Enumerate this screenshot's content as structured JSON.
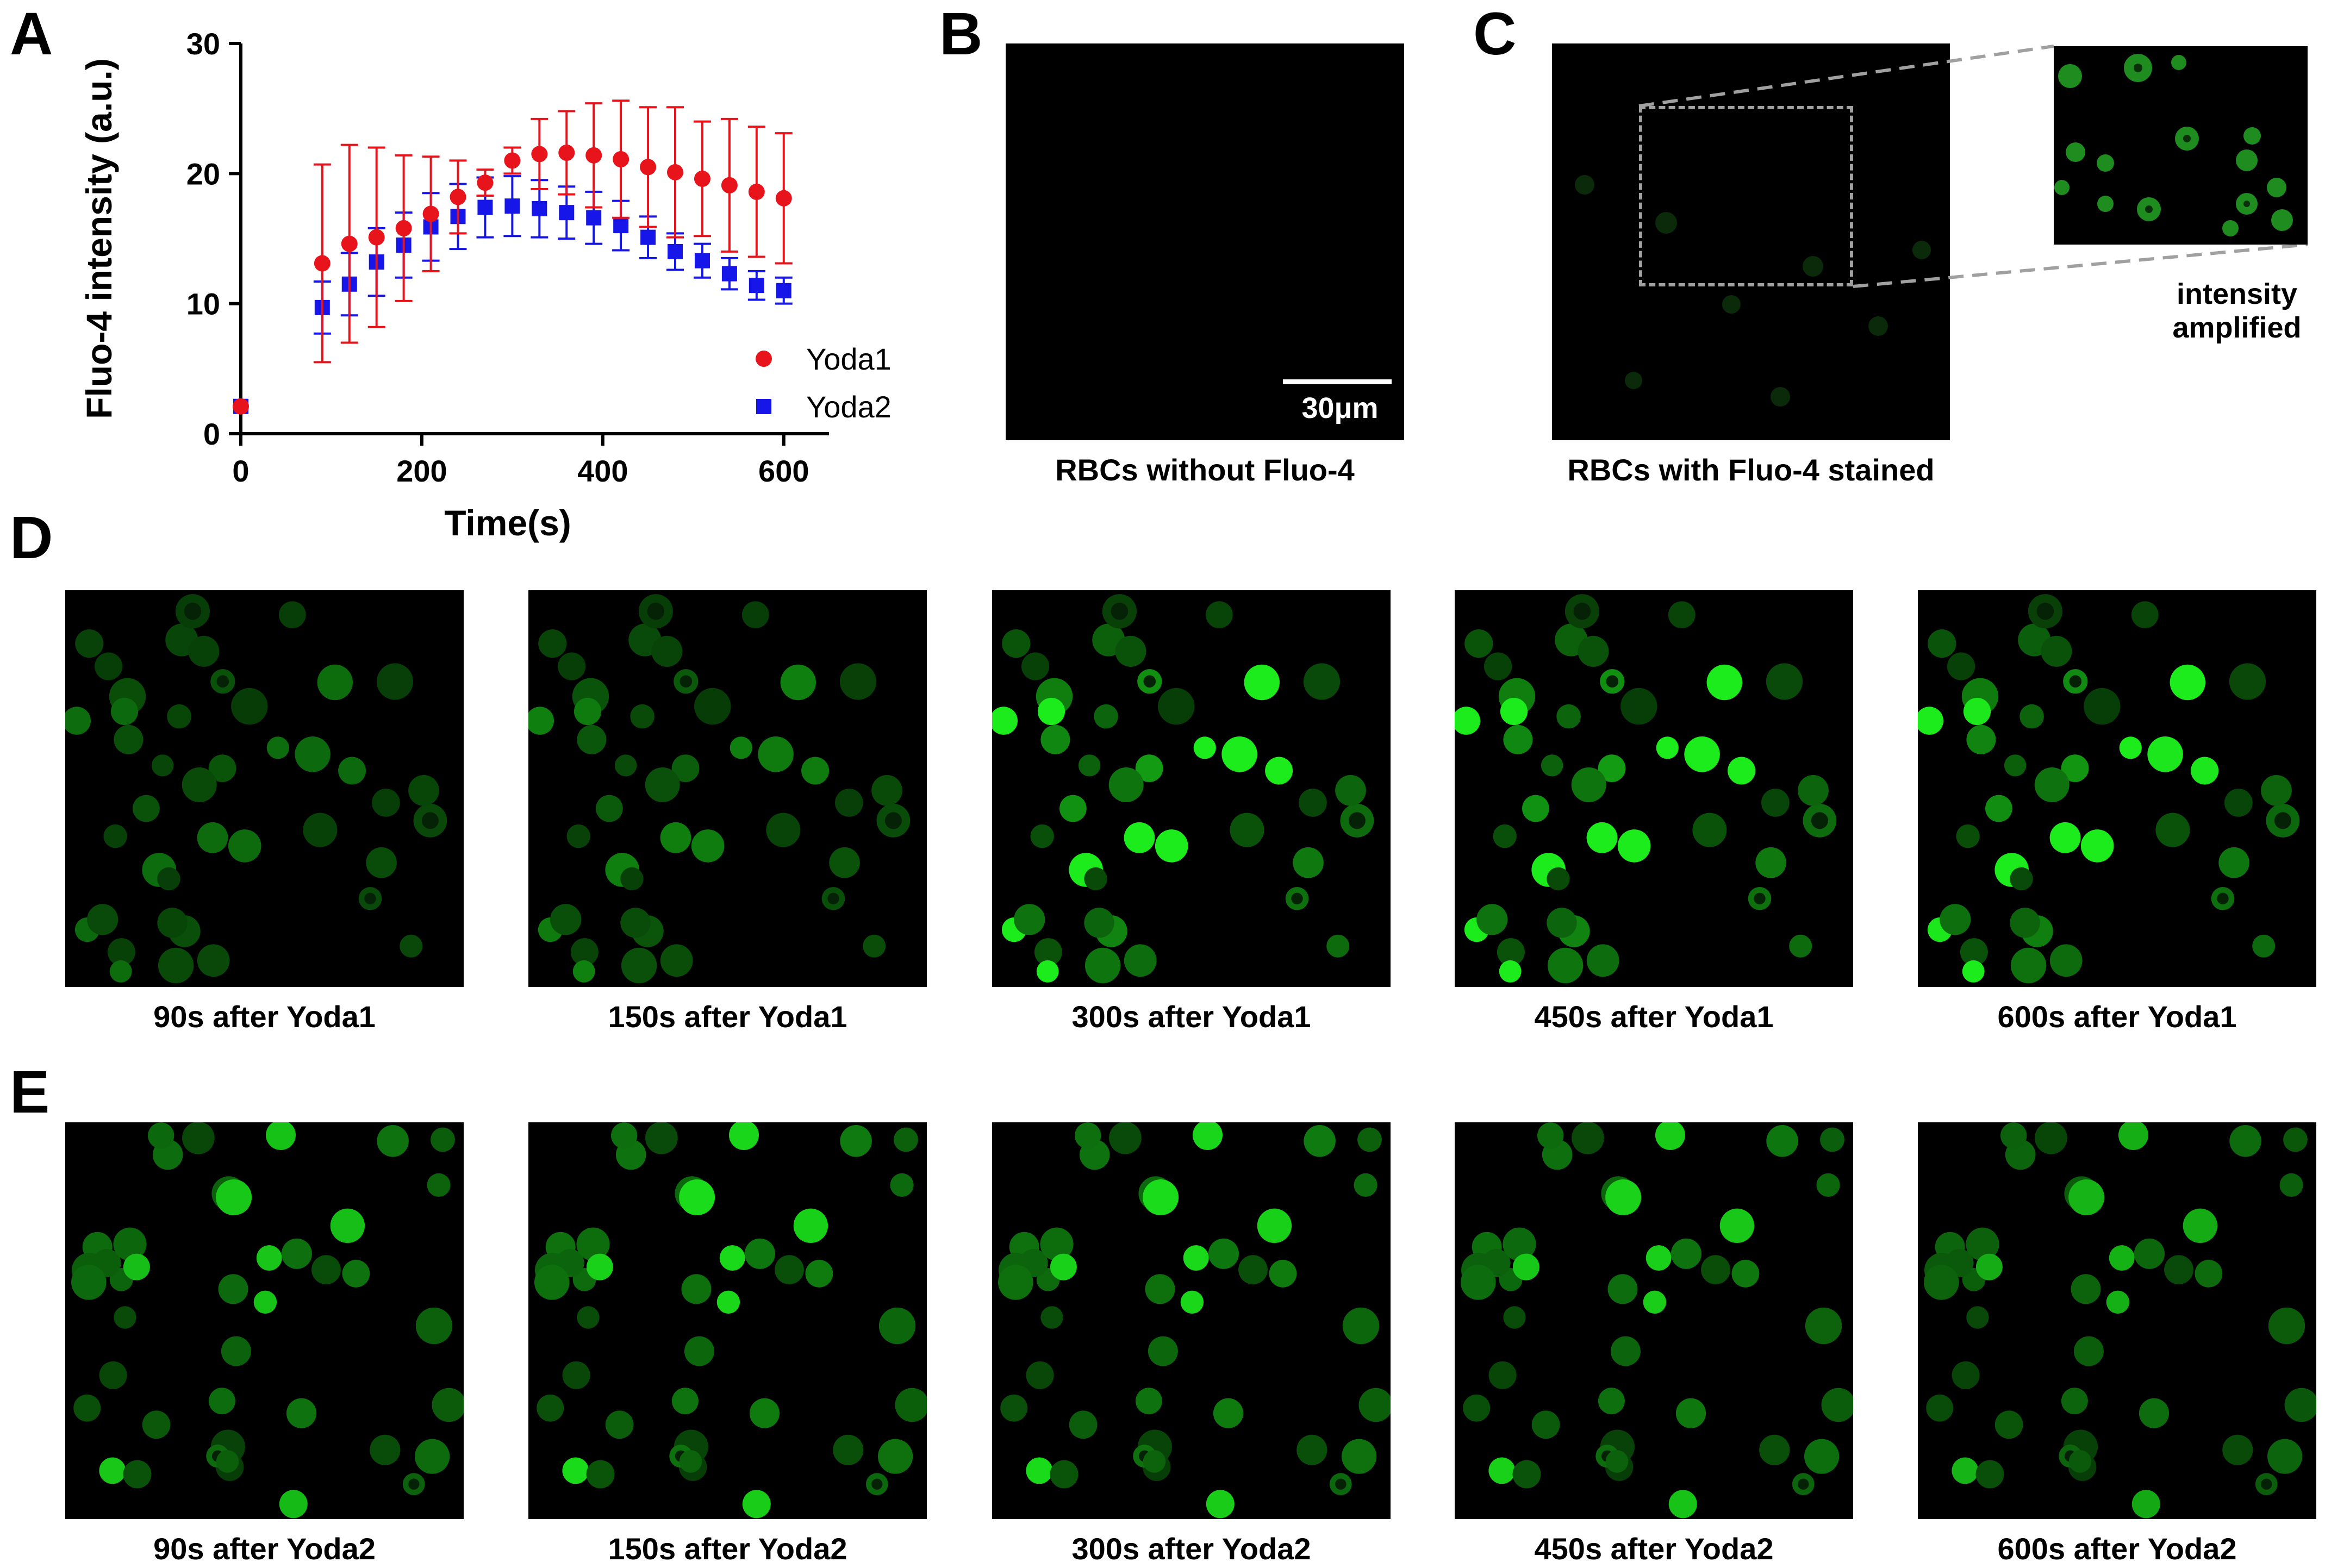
{
  "panels": {
    "A": "A",
    "B": "B",
    "C": "C",
    "D": "D",
    "E": "E"
  },
  "chart_data": {
    "type": "scatter",
    "xlabel": "Time(s)",
    "ylabel": "Fluo-4 intensity (a.u.)",
    "xlim": [
      0,
      650
    ],
    "ylim": [
      0,
      30
    ],
    "xticks": [
      0,
      200,
      400,
      600
    ],
    "yticks": [
      0,
      10,
      20,
      30
    ],
    "legend_position": "right-middle",
    "series": [
      {
        "name": "Yoda1",
        "marker": "circle",
        "color": "#e8141c",
        "x": [
          0,
          90,
          120,
          150,
          180,
          210,
          240,
          270,
          300,
          330,
          360,
          390,
          420,
          450,
          480,
          510,
          540,
          570,
          600
        ],
        "y": [
          2.1,
          13.1,
          14.6,
          15.1,
          15.8,
          16.9,
          18.2,
          19.3,
          21.0,
          21.5,
          21.6,
          21.4,
          21.1,
          20.5,
          20.1,
          19.6,
          19.1,
          18.6,
          18.1
        ],
        "err": [
          0.1,
          7.6,
          7.6,
          6.9,
          5.6,
          4.4,
          2.8,
          1.0,
          1.0,
          2.7,
          3.2,
          4.0,
          4.5,
          4.6,
          5.0,
          4.4,
          5.1,
          5.0,
          5.0
        ]
      },
      {
        "name": "Yoda2",
        "marker": "square",
        "color": "#1616e8",
        "x": [
          0,
          90,
          120,
          150,
          180,
          210,
          240,
          270,
          300,
          330,
          360,
          390,
          420,
          450,
          480,
          510,
          540,
          570,
          600
        ],
        "y": [
          2.1,
          9.7,
          11.5,
          13.2,
          14.5,
          15.9,
          16.7,
          17.4,
          17.5,
          17.3,
          17.0,
          16.6,
          16.0,
          15.1,
          14.0,
          13.3,
          12.3,
          11.4,
          11.0
        ],
        "err": [
          0.1,
          2.0,
          2.4,
          2.6,
          2.5,
          2.6,
          2.5,
          2.3,
          2.3,
          2.2,
          2.0,
          2.0,
          1.9,
          1.6,
          1.4,
          1.3,
          1.2,
          1.1,
          1.0
        ]
      }
    ]
  },
  "panelB": {
    "caption": "RBCs without Fluo-4",
    "scalebar": "30μm"
  },
  "panelC": {
    "caption": "RBCs with Fluo-4 stained",
    "inset_label": "intensity amplified"
  },
  "panelD": {
    "captions": [
      "90s after Yoda1",
      "150s after Yoda1",
      "300s after Yoda1",
      "450s after Yoda1",
      "600s after Yoda1"
    ]
  },
  "panelE": {
    "captions": [
      "90s after Yoda2",
      "150s after Yoda2",
      "300s after Yoda2",
      "450s after Yoda2",
      "600s after Yoda2"
    ]
  },
  "colors": {
    "fluor_green": "#22e622",
    "background": "#000000",
    "inset_box": "#a0a0a0"
  }
}
